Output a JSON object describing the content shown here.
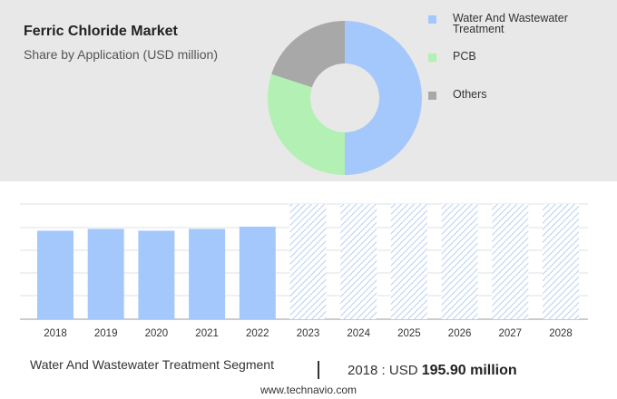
{
  "header": {
    "title": "Ferric Chloride Market",
    "subtitle": "Share by Application (USD million)"
  },
  "colors": {
    "water": "#a4c8fb",
    "pcb": "#b3f0b3",
    "others": "#a8a8a8",
    "forecast_hatch": "#b8cff2"
  },
  "chart_data": [
    {
      "type": "pie",
      "style": "donut",
      "legend_position": "right",
      "categories": [
        "Water And Wastewater Treatment",
        "PCB",
        "Others"
      ],
      "values": [
        50,
        30,
        20
      ],
      "unit": "percent (approximate)"
    },
    {
      "type": "bar",
      "categories": [
        "2018",
        "2019",
        "2020",
        "2021",
        "2022",
        "2023",
        "2024",
        "2025",
        "2026",
        "2027",
        "2028"
      ],
      "values": [
        195.9,
        200,
        196,
        200,
        205,
        null,
        null,
        null,
        null,
        null,
        null
      ],
      "forecast_categories": [
        "2023",
        "2024",
        "2025",
        "2026",
        "2027",
        "2028"
      ],
      "ylim": [
        0,
        255
      ],
      "grid": true
    }
  ],
  "legend": [
    {
      "label": "Water And Wastewater Treatment",
      "color_key": "water"
    },
    {
      "label": "PCB",
      "color_key": "pcb"
    },
    {
      "label": "Others",
      "color_key": "others"
    }
  ],
  "footer": {
    "segment": "Water And Wastewater Treatment Segment",
    "year": "2018",
    "value_prefix": ": USD",
    "value": "195.90 million",
    "source": "www.technavio.com"
  }
}
